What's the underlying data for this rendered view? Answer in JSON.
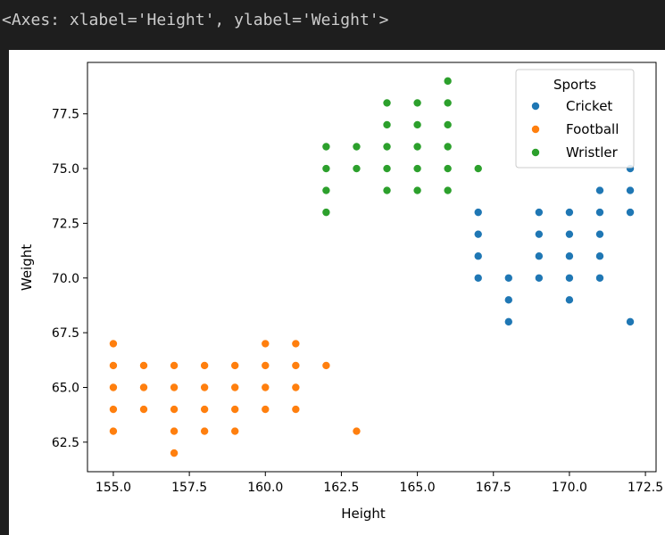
{
  "output": {
    "repr_text": "<Axes: xlabel='Height', ylabel='Weight'>"
  },
  "chart_data": {
    "type": "scatter",
    "xlabel": "Height",
    "ylabel": "Weight",
    "xlim": [
      154.15,
      172.85
    ],
    "ylim": [
      61.15,
      79.85
    ],
    "x_ticks": [
      {
        "value": 155.0,
        "label": "155.0"
      },
      {
        "value": 157.5,
        "label": "157.5"
      },
      {
        "value": 160.0,
        "label": "160.0"
      },
      {
        "value": 162.5,
        "label": "162.5"
      },
      {
        "value": 165.0,
        "label": "165.0"
      },
      {
        "value": 167.5,
        "label": "167.5"
      },
      {
        "value": 170.0,
        "label": "170.0"
      },
      {
        "value": 172.5,
        "label": "172.5"
      }
    ],
    "y_ticks": [
      {
        "value": 62.5,
        "label": "62.5"
      },
      {
        "value": 65.0,
        "label": "65.0"
      },
      {
        "value": 67.5,
        "label": "67.5"
      },
      {
        "value": 70.0,
        "label": "70.0"
      },
      {
        "value": 72.5,
        "label": "72.5"
      },
      {
        "value": 75.0,
        "label": "75.0"
      },
      {
        "value": 77.5,
        "label": "77.5"
      }
    ],
    "grid": false,
    "legend": {
      "title": "Sports",
      "placement": "top-right"
    },
    "series": [
      {
        "name": "Cricket",
        "color": "#1f77b4",
        "points": [
          [
            167,
            70
          ],
          [
            167,
            71
          ],
          [
            167,
            72
          ],
          [
            167,
            73
          ],
          [
            168,
            68
          ],
          [
            168,
            69
          ],
          [
            168,
            70
          ],
          [
            169,
            70
          ],
          [
            169,
            71
          ],
          [
            169,
            72
          ],
          [
            169,
            73
          ],
          [
            170,
            69
          ],
          [
            170,
            70
          ],
          [
            170,
            71
          ],
          [
            170,
            72
          ],
          [
            170,
            73
          ],
          [
            171,
            70
          ],
          [
            171,
            71
          ],
          [
            171,
            72
          ],
          [
            171,
            73
          ],
          [
            171,
            74
          ],
          [
            172,
            68
          ],
          [
            172,
            73
          ],
          [
            172,
            74
          ],
          [
            172,
            75
          ]
        ]
      },
      {
        "name": "Football",
        "color": "#ff7f0e",
        "points": [
          [
            155,
            63
          ],
          [
            155,
            64
          ],
          [
            155,
            65
          ],
          [
            155,
            66
          ],
          [
            155,
            67
          ],
          [
            156,
            64
          ],
          [
            156,
            65
          ],
          [
            156,
            66
          ],
          [
            157,
            62
          ],
          [
            157,
            63
          ],
          [
            157,
            64
          ],
          [
            157,
            65
          ],
          [
            157,
            66
          ],
          [
            158,
            63
          ],
          [
            158,
            64
          ],
          [
            158,
            65
          ],
          [
            158,
            66
          ],
          [
            159,
            63
          ],
          [
            159,
            64
          ],
          [
            159,
            65
          ],
          [
            159,
            66
          ],
          [
            160,
            64
          ],
          [
            160,
            65
          ],
          [
            160,
            66
          ],
          [
            160,
            67
          ],
          [
            161,
            64
          ],
          [
            161,
            65
          ],
          [
            161,
            66
          ],
          [
            161,
            67
          ],
          [
            162,
            66
          ],
          [
            163,
            63
          ]
        ]
      },
      {
        "name": "Wristler",
        "color": "#2ca02c",
        "points": [
          [
            162,
            73
          ],
          [
            162,
            74
          ],
          [
            162,
            75
          ],
          [
            162,
            76
          ],
          [
            163,
            75
          ],
          [
            163,
            76
          ],
          [
            164,
            74
          ],
          [
            164,
            75
          ],
          [
            164,
            76
          ],
          [
            164,
            77
          ],
          [
            164,
            78
          ],
          [
            165,
            74
          ],
          [
            165,
            75
          ],
          [
            165,
            76
          ],
          [
            165,
            77
          ],
          [
            165,
            78
          ],
          [
            166,
            74
          ],
          [
            166,
            75
          ],
          [
            166,
            76
          ],
          [
            166,
            77
          ],
          [
            166,
            78
          ],
          [
            166,
            79
          ],
          [
            167,
            75
          ]
        ]
      }
    ]
  }
}
